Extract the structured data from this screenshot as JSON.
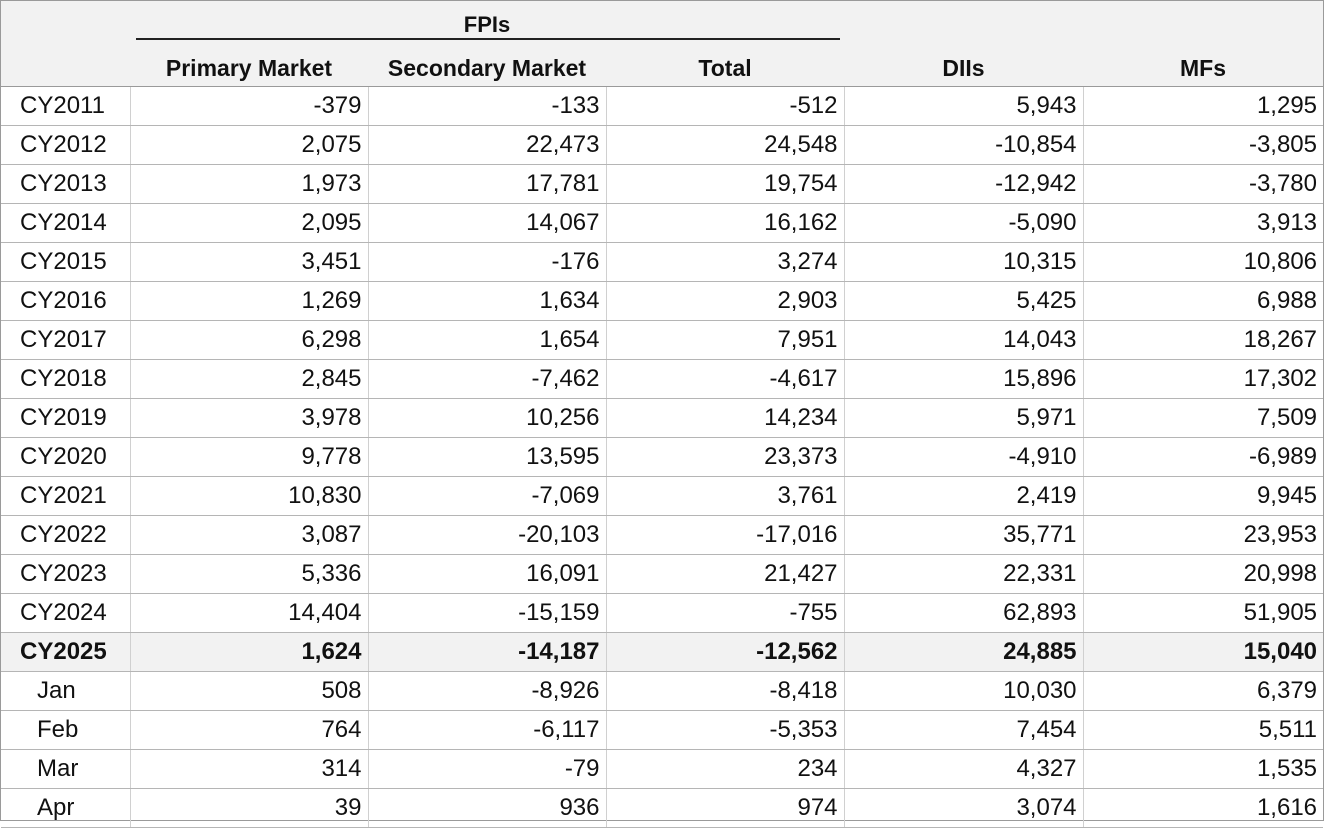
{
  "table": {
    "group_header": "FPIs",
    "columns": [
      "Primary Market",
      "Secondary Market",
      "Total",
      "DIIs",
      "MFs"
    ],
    "rows": [
      {
        "label": "CY2011",
        "values": [
          "-379",
          "-133",
          "-512",
          "5,943",
          "1,295"
        ]
      },
      {
        "label": "CY2012",
        "values": [
          "2,075",
          "22,473",
          "24,548",
          "-10,854",
          "-3,805"
        ]
      },
      {
        "label": "CY2013",
        "values": [
          "1,973",
          "17,781",
          "19,754",
          "-12,942",
          "-3,780"
        ]
      },
      {
        "label": "CY2014",
        "values": [
          "2,095",
          "14,067",
          "16,162",
          "-5,090",
          "3,913"
        ]
      },
      {
        "label": "CY2015",
        "values": [
          "3,451",
          "-176",
          "3,274",
          "10,315",
          "10,806"
        ]
      },
      {
        "label": "CY2016",
        "values": [
          "1,269",
          "1,634",
          "2,903",
          "5,425",
          "6,988"
        ]
      },
      {
        "label": "CY2017",
        "values": [
          "6,298",
          "1,654",
          "7,951",
          "14,043",
          "18,267"
        ]
      },
      {
        "label": "CY2018",
        "values": [
          "2,845",
          "-7,462",
          "-4,617",
          "15,896",
          "17,302"
        ]
      },
      {
        "label": "CY2019",
        "values": [
          "3,978",
          "10,256",
          "14,234",
          "5,971",
          "7,509"
        ]
      },
      {
        "label": "CY2020",
        "values": [
          "9,778",
          "13,595",
          "23,373",
          "-4,910",
          "-6,989"
        ]
      },
      {
        "label": "CY2021",
        "values": [
          "10,830",
          "-7,069",
          "3,761",
          "2,419",
          "9,945"
        ]
      },
      {
        "label": "CY2022",
        "values": [
          "3,087",
          "-20,103",
          "-17,016",
          "35,771",
          "23,953"
        ]
      },
      {
        "label": "CY2023",
        "values": [
          "5,336",
          "16,091",
          "21,427",
          "22,331",
          "20,998"
        ]
      },
      {
        "label": "CY2024",
        "values": [
          "14,404",
          "-15,159",
          "-755",
          "62,893",
          "51,905"
        ]
      },
      {
        "label": "CY2025",
        "values": [
          "1,624",
          "-14,187",
          "-12,562",
          "24,885",
          "15,040"
        ],
        "highlight": true
      },
      {
        "label": "Jan",
        "values": [
          "508",
          "-8,926",
          "-8,418",
          "10,030",
          "6,379"
        ],
        "month": true
      },
      {
        "label": "Feb",
        "values": [
          "764",
          "-6,117",
          "-5,353",
          "7,454",
          "5,511"
        ],
        "month": true
      },
      {
        "label": "Mar",
        "values": [
          "314",
          "-79",
          "234",
          "4,327",
          "1,535"
        ],
        "month": true
      },
      {
        "label": "Apr",
        "values": [
          "39",
          "936",
          "974",
          "3,074",
          "1,616"
        ],
        "month": true
      }
    ]
  },
  "colors": {
    "header_bg": "#f2f2f2",
    "highlight_row_bg": "#f2f2f2",
    "grid_line": "#b5b5b5",
    "text": "#111111"
  }
}
